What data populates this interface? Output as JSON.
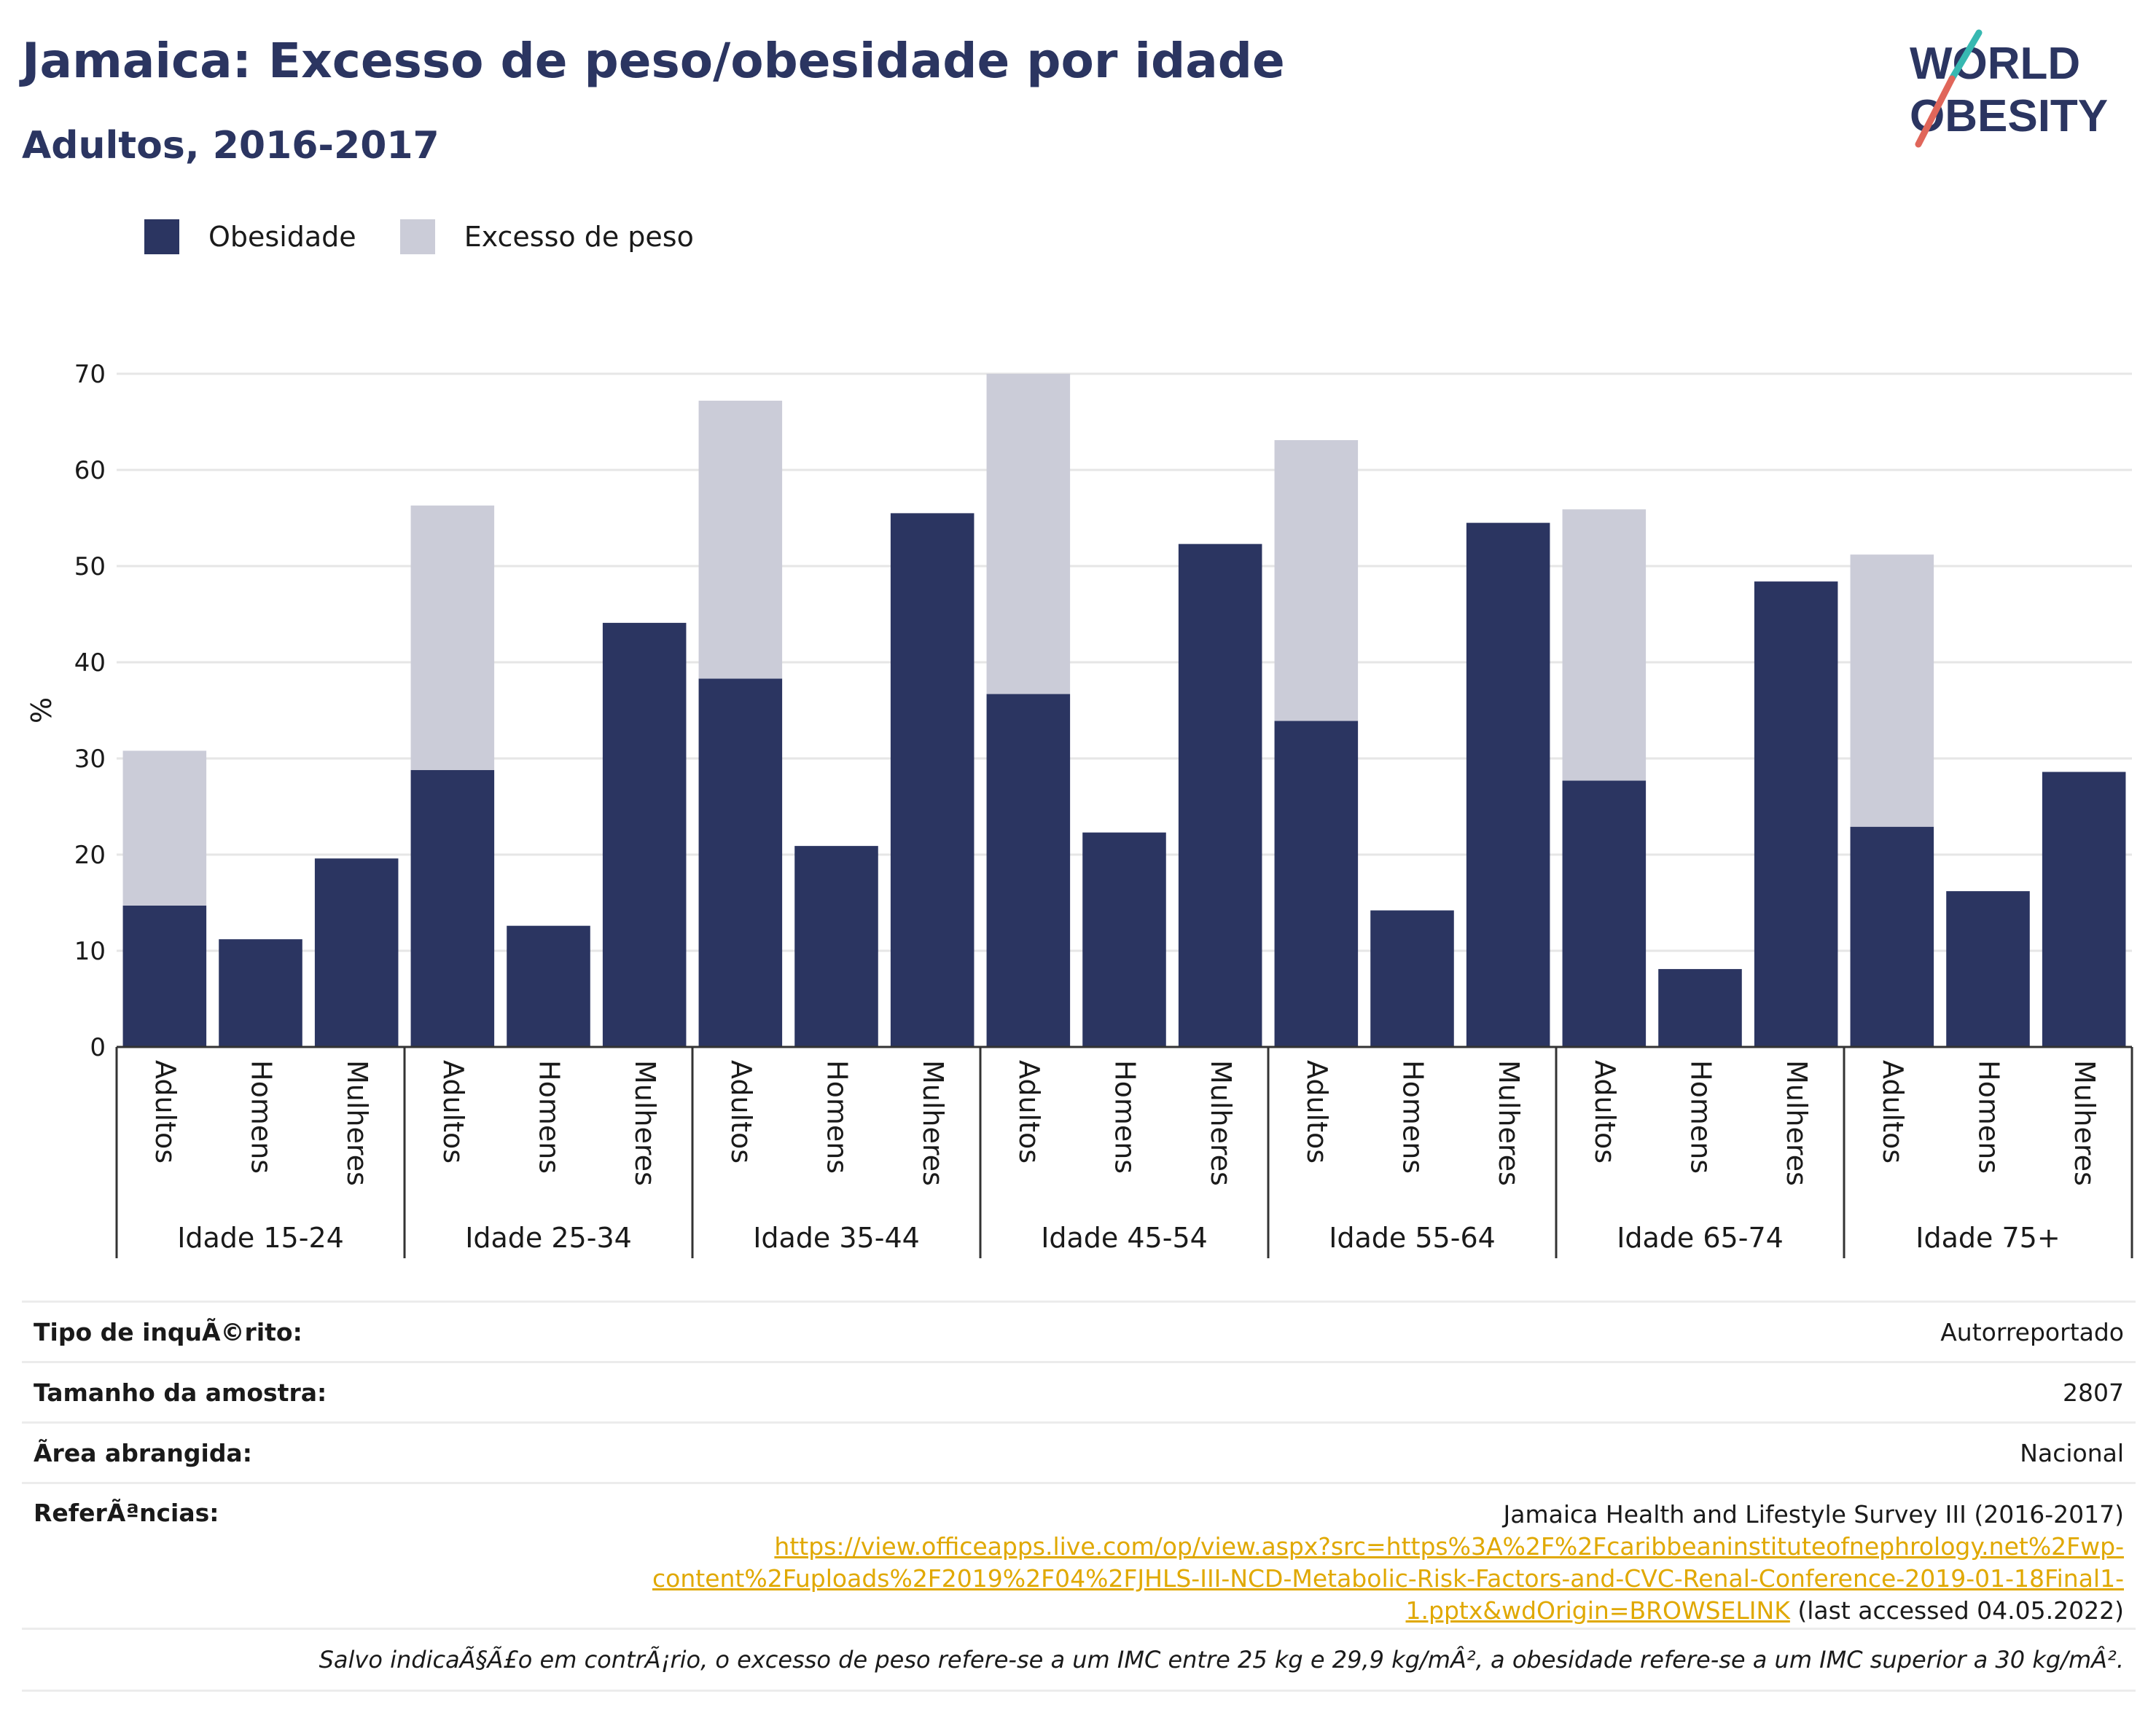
{
  "header": {
    "title": "Jamaica: Excesso de peso/obesidade por idade",
    "subtitle": "Adultos, 2016-2017"
  },
  "logo": {
    "line1": "WORLD",
    "line2": "OBESITY"
  },
  "legend": {
    "items": [
      {
        "label": "Obesidade",
        "color": "#2b3561"
      },
      {
        "label": "Excesso de peso",
        "color": "#cbccd8"
      }
    ]
  },
  "chart_data": {
    "type": "bar",
    "stacked": true,
    "ylabel": "%",
    "ylim": [
      0,
      70
    ],
    "yticks": [
      0,
      10,
      20,
      30,
      40,
      50,
      60,
      70
    ],
    "grid": true,
    "legend_position": "top-left",
    "groups": [
      "Idade 15-24",
      "Idade 25-34",
      "Idade 35-44",
      "Idade 45-54",
      "Idade 55-64",
      "Idade 65-74",
      "Idade 75+"
    ],
    "subcategories": [
      "Adultos",
      "Homens",
      "Mulheres"
    ],
    "series": [
      {
        "name": "Obesidade",
        "color": "#2b3561",
        "values": [
          14.7,
          11.2,
          19.6,
          28.8,
          12.6,
          44.1,
          38.3,
          20.9,
          55.5,
          36.7,
          22.3,
          52.3,
          33.9,
          14.2,
          54.5,
          27.7,
          8.1,
          48.4,
          22.9,
          16.2,
          28.6
        ]
      },
      {
        "name": "Excesso de peso",
        "color": "#cbccd8",
        "values": [
          16.1,
          null,
          null,
          27.5,
          null,
          null,
          28.9,
          null,
          null,
          33.3,
          null,
          null,
          29.2,
          null,
          null,
          28.2,
          null,
          null,
          28.3,
          null,
          null
        ]
      }
    ]
  },
  "info": {
    "survey_type_label": "Tipo de inquÃ©rito:",
    "survey_type_value": "Autorreportado",
    "sample_size_label": "Tamanho da amostra:",
    "sample_size_value": "2807",
    "area_label": "Ã\u001frea abrangida:",
    "area_value": "Nacional",
    "references_label": "ReferÃªncias:",
    "reference_title": "Jamaica Health and Lifestyle Survey III (2016-2017)",
    "reference_link_1": "https://view.officeapps.live.com/op/view.aspx?src=https%3A%2F%2Fcaribbeaninstituteofnephrology.net%2Fwp-",
    "reference_link_2": "content%2Fuploads%2F2019%2F04%2FJHLS-III-NCD-Metabolic-Risk-Factors-and-CVC-Renal-Conference-2019-01-18Final1-",
    "reference_link_3": "1.pptx&wdOrigin=BROWSELINK",
    "reference_accessed": " (last accessed 04.05.2022)",
    "note": "Salvo indicaÃ§Ã£o em contrÃ¡rio, o excesso de peso refere-se a um IMC entre 25 kg e 29,9 kg/mÂ², a obesidade refere-se a um IMC superior a 30 kg/mÂ²."
  }
}
